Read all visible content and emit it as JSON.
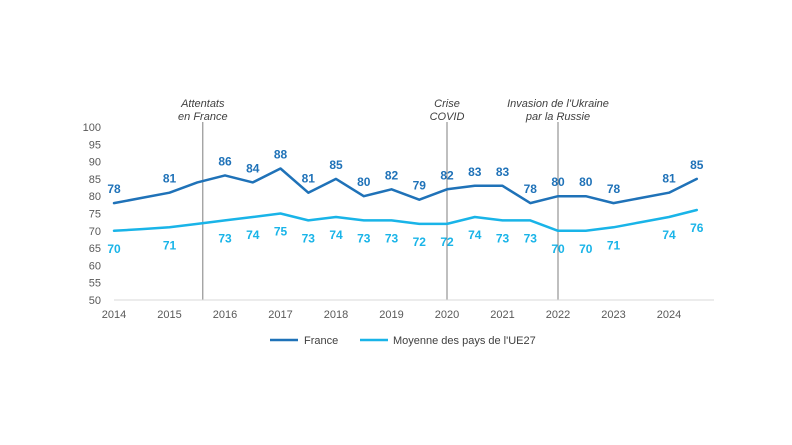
{
  "chart_data": {
    "type": "line",
    "title": "",
    "xlabel": "",
    "ylabel": "",
    "ylim": [
      50,
      100
    ],
    "yticks": [
      50,
      55,
      60,
      65,
      70,
      75,
      80,
      85,
      90,
      95,
      100
    ],
    "x_tick_labels": [
      "2014",
      "2015",
      "2016",
      "2017",
      "2018",
      "2019",
      "2020",
      "2021",
      "2022",
      "2023",
      "2024"
    ],
    "x_start": 2014,
    "x_step": 0.5,
    "series": [
      {
        "name": "France",
        "color": "#1F72B8",
        "values": [
          78,
          79.5,
          81,
          84,
          86,
          84,
          88,
          81,
          85,
          80,
          82,
          79,
          82,
          83,
          83,
          78,
          80,
          80,
          78,
          79.5,
          81,
          85
        ],
        "data_labels": [
          {
            "index": 0,
            "text": "78"
          },
          {
            "index": 2,
            "text": "81"
          },
          {
            "index": 4,
            "text": "86"
          },
          {
            "index": 5,
            "text": "84"
          },
          {
            "index": 6,
            "text": "88"
          },
          {
            "index": 7,
            "text": "81"
          },
          {
            "index": 8,
            "text": "85"
          },
          {
            "index": 9,
            "text": "80"
          },
          {
            "index": 10,
            "text": "82"
          },
          {
            "index": 11,
            "text": "79"
          },
          {
            "index": 12,
            "text": "82"
          },
          {
            "index": 13,
            "text": "83"
          },
          {
            "index": 14,
            "text": "83"
          },
          {
            "index": 15,
            "text": "78"
          },
          {
            "index": 16,
            "text": "80"
          },
          {
            "index": 17,
            "text": "80"
          },
          {
            "index": 18,
            "text": "78"
          },
          {
            "index": 20,
            "text": "81"
          },
          {
            "index": 21,
            "text": "85"
          }
        ]
      },
      {
        "name": "Moyenne des pays de l'UE27",
        "color": "#19B4E8",
        "values": [
          70,
          70.5,
          71,
          72,
          73,
          74,
          75,
          73,
          74,
          73,
          73,
          72,
          72,
          74,
          73,
          73,
          70,
          70,
          71,
          72.5,
          74,
          76
        ],
        "data_labels": [
          {
            "index": 0,
            "text": "70"
          },
          {
            "index": 2,
            "text": "71"
          },
          {
            "index": 4,
            "text": "73"
          },
          {
            "index": 5,
            "text": "74"
          },
          {
            "index": 6,
            "text": "75"
          },
          {
            "index": 7,
            "text": "73"
          },
          {
            "index": 8,
            "text": "74"
          },
          {
            "index": 9,
            "text": "73"
          },
          {
            "index": 10,
            "text": "73"
          },
          {
            "index": 11,
            "text": "72"
          },
          {
            "index": 12,
            "text": "72"
          },
          {
            "index": 13,
            "text": "74"
          },
          {
            "index": 14,
            "text": "73"
          },
          {
            "index": 15,
            "text": "73"
          },
          {
            "index": 16,
            "text": "70"
          },
          {
            "index": 17,
            "text": "70"
          },
          {
            "index": 18,
            "text": "71"
          },
          {
            "index": 20,
            "text": "74"
          },
          {
            "index": 21,
            "text": "76"
          }
        ]
      }
    ],
    "annotations": [
      {
        "x": 2015.6,
        "lines": [
          "Attentats",
          "en France"
        ]
      },
      {
        "x": 2020.0,
        "lines": [
          "Crise",
          "COVID"
        ]
      },
      {
        "x": 2022.0,
        "lines": [
          "Invasion de l'Ukraine",
          "par la Russie"
        ]
      }
    ],
    "legend": {
      "position": "bottom"
    }
  }
}
